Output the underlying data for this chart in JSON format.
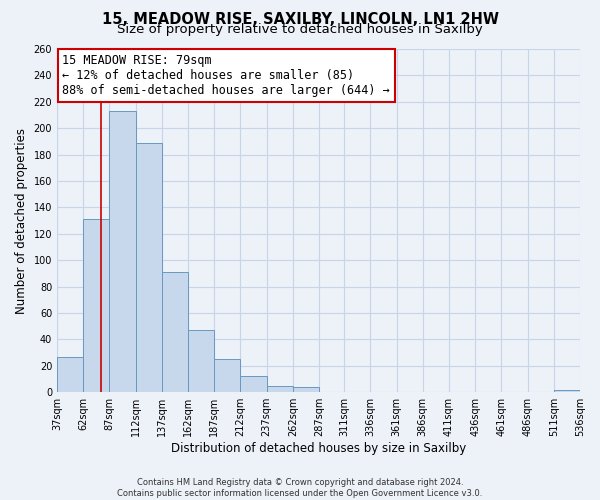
{
  "title": "15, MEADOW RISE, SAXILBY, LINCOLN, LN1 2HW",
  "subtitle": "Size of property relative to detached houses in Saxilby",
  "xlabel": "Distribution of detached houses by size in Saxilby",
  "ylabel": "Number of detached properties",
  "bar_edges": [
    37,
    62,
    87,
    112,
    137,
    162,
    187,
    212,
    237,
    262,
    287,
    311,
    336,
    361,
    386,
    411,
    436,
    461,
    486,
    511,
    536
  ],
  "bar_heights": [
    27,
    131,
    213,
    189,
    91,
    47,
    25,
    12,
    5,
    4,
    0,
    0,
    0,
    0,
    0,
    0,
    0,
    0,
    0,
    2
  ],
  "tick_labels": [
    "37sqm",
    "62sqm",
    "87sqm",
    "112sqm",
    "137sqm",
    "162sqm",
    "187sqm",
    "212sqm",
    "237sqm",
    "262sqm",
    "287sqm",
    "311sqm",
    "336sqm",
    "361sqm",
    "386sqm",
    "411sqm",
    "436sqm",
    "461sqm",
    "486sqm",
    "511sqm",
    "536sqm"
  ],
  "bar_color": "#c8d8ec",
  "bar_edge_color": "#6899c0",
  "property_line_x": 79,
  "property_line_color": "#cc0000",
  "annotation_line1": "15 MEADOW RISE: 79sqm",
  "annotation_line2": "← 12% of detached houses are smaller (85)",
  "annotation_line3": "88% of semi-detached houses are larger (644) →",
  "annotation_box_color": "#ffffff",
  "annotation_box_edge_color": "#cc0000",
  "ylim": [
    0,
    260
  ],
  "yticks": [
    0,
    20,
    40,
    60,
    80,
    100,
    120,
    140,
    160,
    180,
    200,
    220,
    240,
    260
  ],
  "grid_color": "#c8d4e8",
  "background_color": "#edf1f8",
  "footer_text": "Contains HM Land Registry data © Crown copyright and database right 2024.\nContains public sector information licensed under the Open Government Licence v3.0.",
  "title_fontsize": 10.5,
  "subtitle_fontsize": 9.5,
  "xlabel_fontsize": 8.5,
  "ylabel_fontsize": 8.5,
  "tick_fontsize": 7,
  "annotation_fontsize": 8.5,
  "footer_fontsize": 6
}
